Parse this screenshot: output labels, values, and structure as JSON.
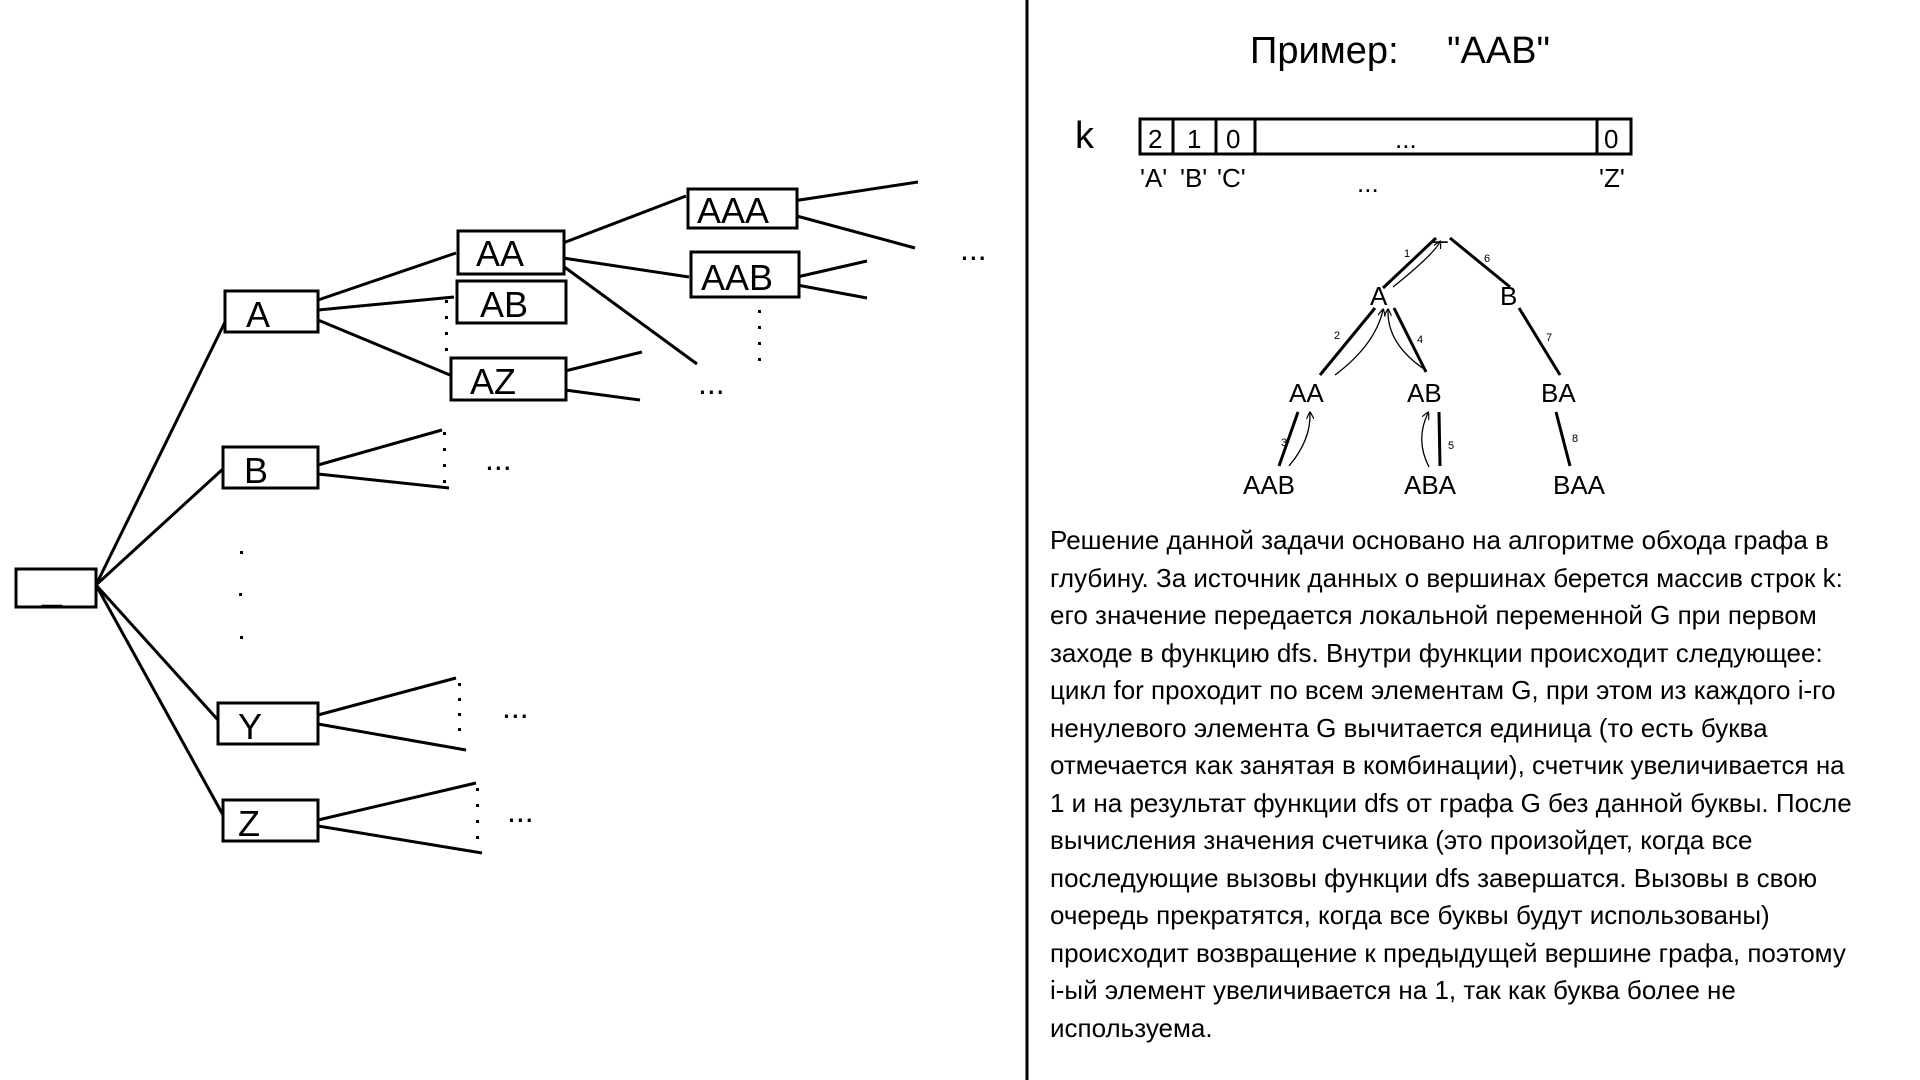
{
  "tree": {
    "root_label": "_",
    "level1": [
      "A",
      "B",
      "Y",
      "Z"
    ],
    "level2": [
      "AA",
      "AB",
      "AZ"
    ],
    "level3": [
      "AAA",
      "AAB"
    ],
    "ellipsis": "..."
  },
  "example": {
    "title": "Пример:",
    "value": "\"AAB\"",
    "array_name": "k",
    "cells": [
      "2",
      "1",
      "0",
      "...",
      "0"
    ],
    "index_labels": [
      "'A'",
      "'B'",
      "'C'",
      "'Z'"
    ],
    "index_ellipsis": "..."
  },
  "dfs_tree": {
    "root": "_",
    "nodes": [
      "A",
      "B",
      "AA",
      "AB",
      "BA",
      "AAB",
      "ABA",
      "BAA"
    ],
    "edge_order": [
      "1",
      "2",
      "3",
      "4",
      "5",
      "6",
      "7",
      "8"
    ]
  },
  "description": [
    "Решение данной задачи основано на алгоритме обхода графа в",
    "глубину. За источник данных о вершинах берется массив строк k:",
    "его значение передается локальной переменной G при первом",
    "заходе в функцию dfs. Внутри функции происходит следующее:",
    "цикл for проходит по всем элементам G, при этом из каждого i-го",
    "ненулевого элемента G вычитается единица (то есть буква",
    "отмечается как занятая в комбинации), счетчик увеличивается на",
    "1 и на результат функции dfs от графа G без данной буквы. После",
    "вычисления значения счетчика (это произойдет, когда все",
    "последующие вызовы функции dfs завершатся. Вызовы в свою",
    "очередь прекратятся, когда все буквы будут использованы)",
    "происходит возвращение к предыдущей вершине графа, поэтому",
    "i-ый элемент увеличивается на 1, так как буква более не",
    "используема."
  ]
}
